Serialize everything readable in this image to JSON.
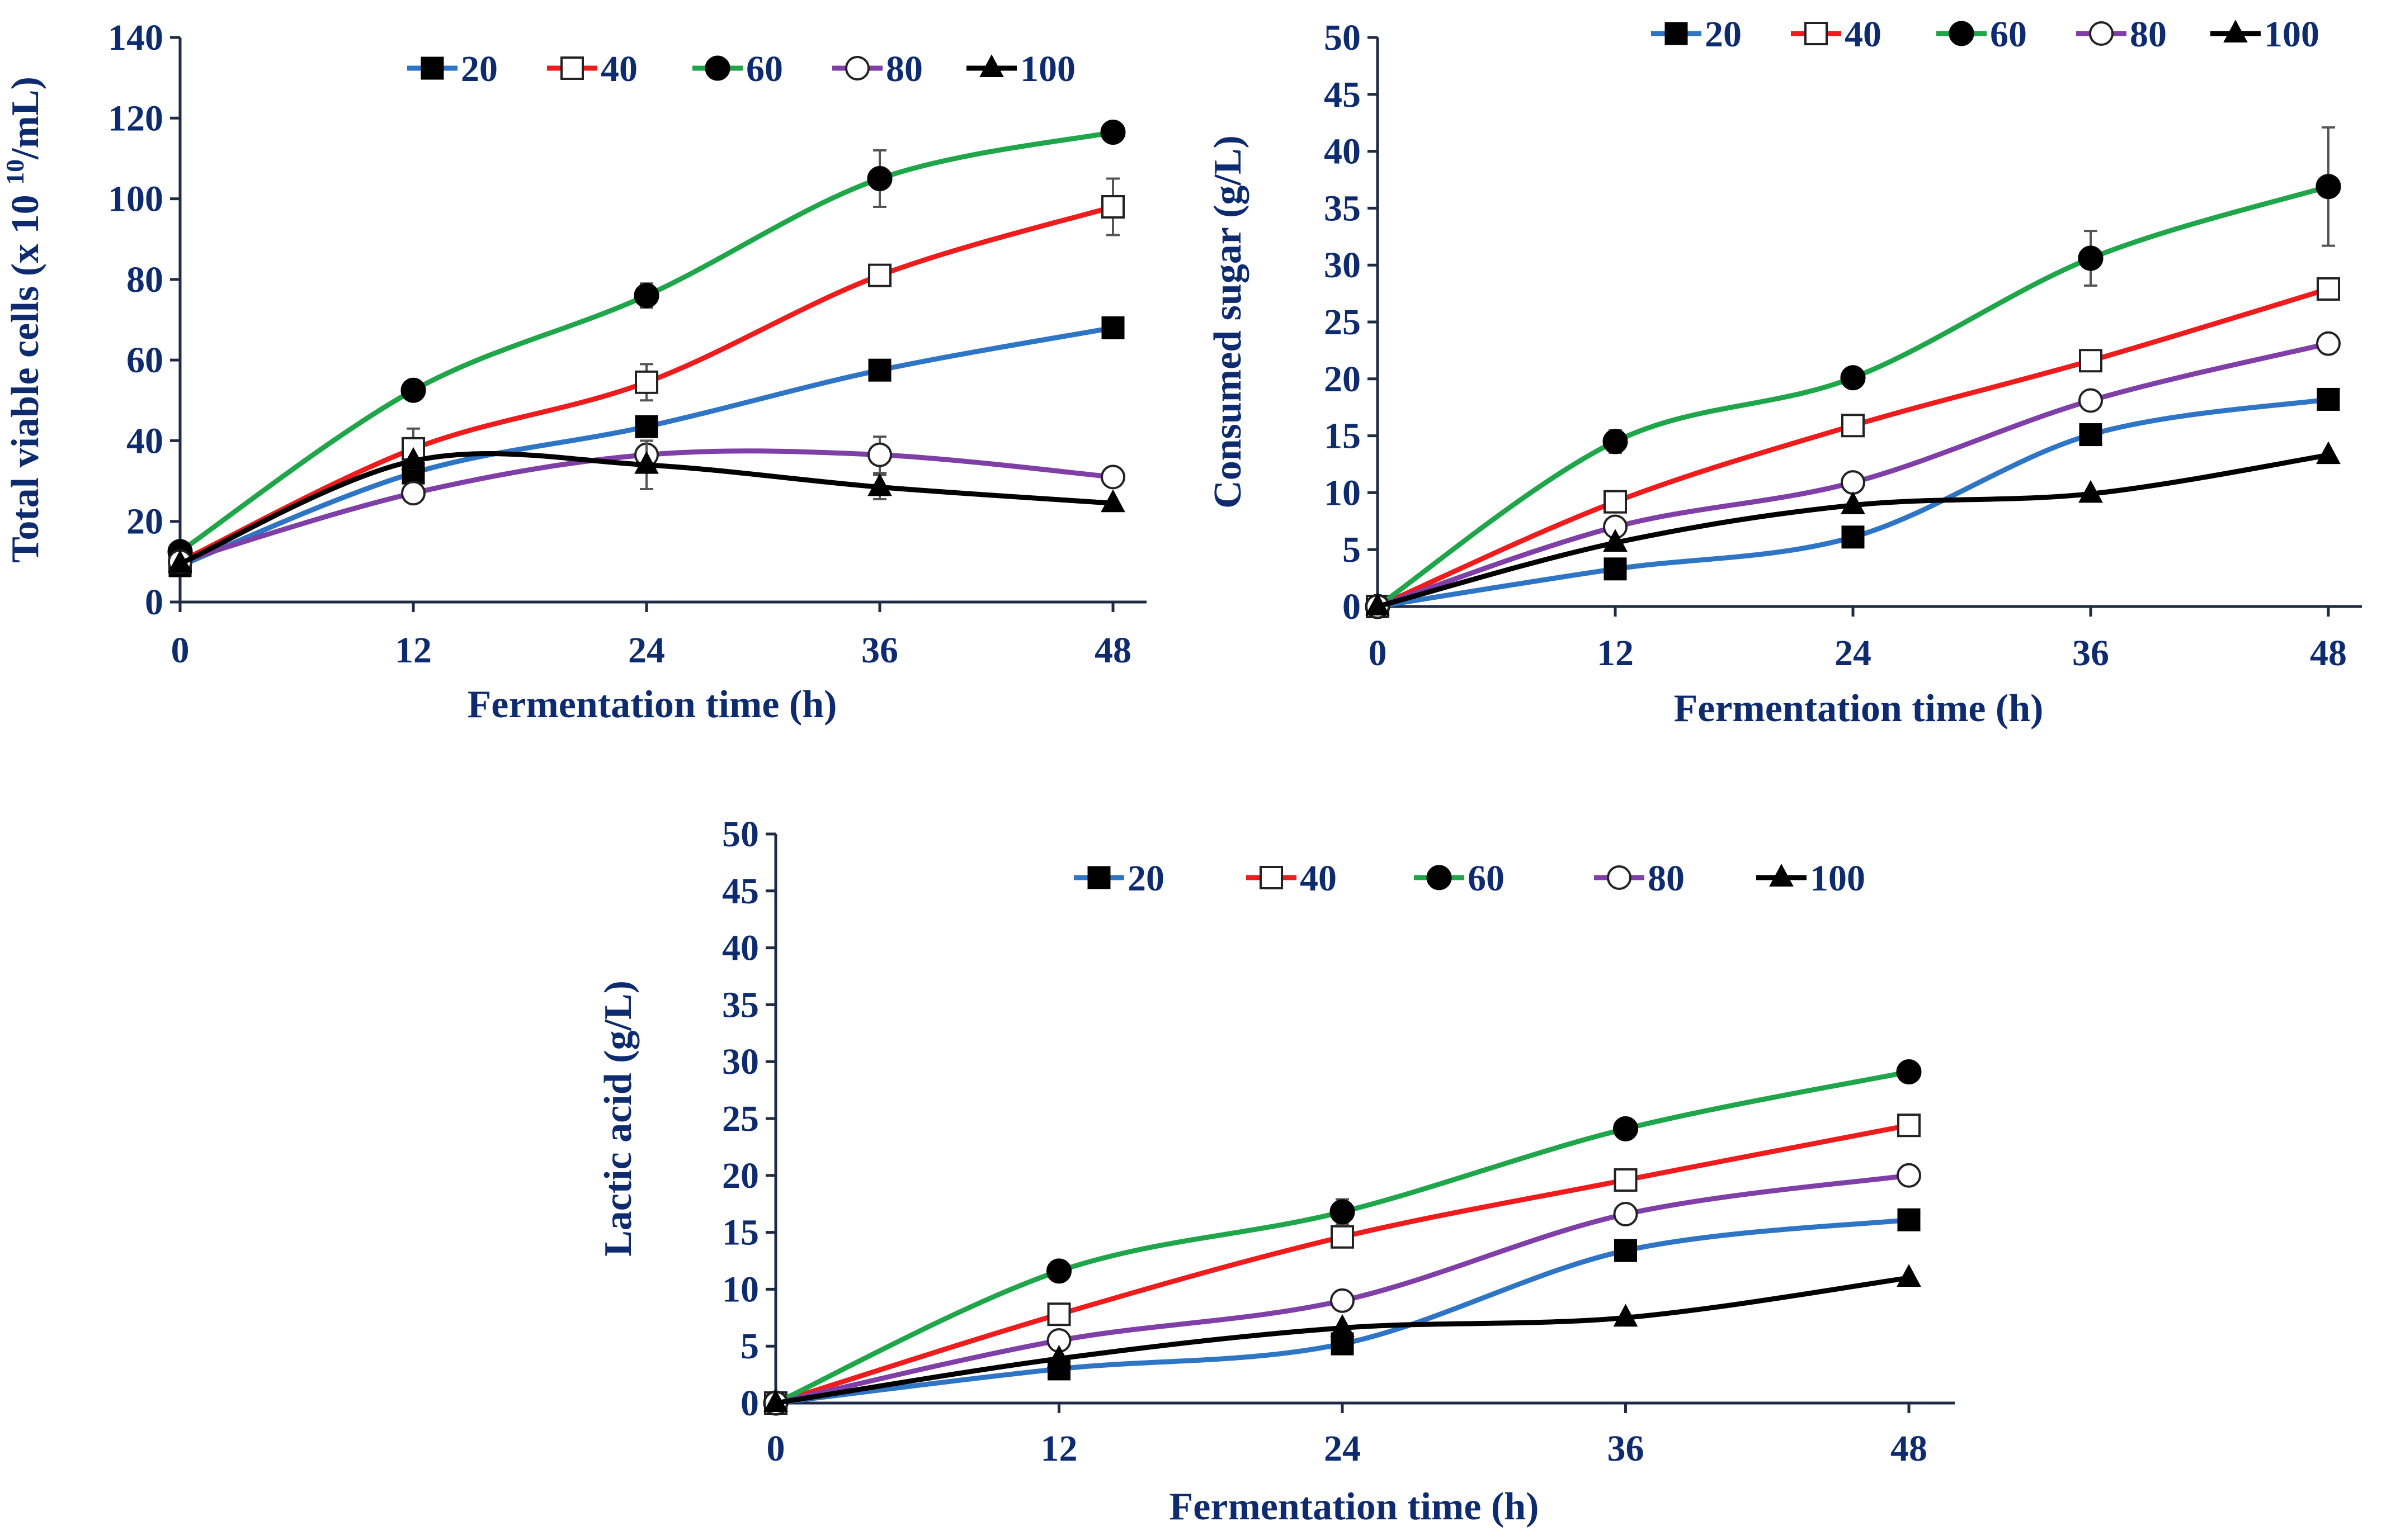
{
  "colors": {
    "s20": "#2f75c5",
    "s40": "#ee1c1c",
    "s60": "#1fa64a",
    "s80": "#7f3fa6",
    "s100": "#000000",
    "text": "#0d2b6e",
    "axis": "#1f2a44"
  },
  "chart_data": [
    {
      "type": "line",
      "xlabel": "Fermentation time (h)",
      "ylabel": "Total viable cells (x 10",
      "ylabel_sup": "10",
      "ylabel_tail": "/mL)",
      "x": [
        0,
        12,
        24,
        36,
        48
      ],
      "xticks": [
        "0",
        "12",
        "24",
        "36",
        "48"
      ],
      "ylim": [
        0,
        140
      ],
      "yticks": [
        "0",
        "20",
        "40",
        "60",
        "80",
        "100",
        "120",
        "140"
      ],
      "legend_position": "top",
      "series": [
        {
          "name": "20",
          "marker": "square-filled",
          "values": [
            9,
            32,
            43.5,
            57.5,
            68
          ],
          "errors": [
            0,
            0,
            0,
            0,
            0
          ]
        },
        {
          "name": "40",
          "marker": "square-open",
          "values": [
            10,
            38,
            54.5,
            81,
            98
          ],
          "errors": [
            0,
            5,
            4.5,
            0,
            7
          ]
        },
        {
          "name": "60",
          "marker": "circle-filled",
          "values": [
            12.5,
            52.5,
            76,
            105,
            116.5
          ],
          "errors": [
            0,
            0,
            3,
            7,
            0
          ]
        },
        {
          "name": "80",
          "marker": "circle-open",
          "values": [
            10,
            27,
            36.5,
            36.5,
            31
          ],
          "errors": [
            0,
            0,
            0,
            4.5,
            0
          ]
        },
        {
          "name": "100",
          "marker": "triangle-filled",
          "values": [
            9.5,
            35,
            34,
            28.5,
            24.5
          ],
          "errors": [
            0,
            0,
            6,
            3,
            0
          ]
        }
      ]
    },
    {
      "type": "line",
      "xlabel": "Fermentation time (h)",
      "ylabel": "Consumed sugar (g/L)",
      "x": [
        0,
        12,
        24,
        36,
        48
      ],
      "xticks": [
        "0",
        "12",
        "24",
        "36",
        "48"
      ],
      "ylim": [
        0,
        50
      ],
      "yticks": [
        "0",
        "5",
        "10",
        "15",
        "20",
        "25",
        "30",
        "35",
        "40",
        "45",
        "50"
      ],
      "legend_position": "top",
      "series": [
        {
          "name": "20",
          "marker": "square-filled",
          "values": [
            0,
            3.3,
            6.1,
            15.1,
            18.2
          ],
          "errors": [
            0,
            0,
            0,
            0,
            0
          ]
        },
        {
          "name": "40",
          "marker": "square-open",
          "values": [
            0,
            9.2,
            15.9,
            21.6,
            27.9
          ],
          "errors": [
            0,
            0.7,
            0.8,
            0.8,
            0.8
          ]
        },
        {
          "name": "60",
          "marker": "circle-filled",
          "values": [
            0,
            14.5,
            20.1,
            30.6,
            36.9
          ],
          "errors": [
            0,
            1,
            0,
            2.4,
            5.2
          ]
        },
        {
          "name": "80",
          "marker": "circle-open",
          "values": [
            0,
            7,
            10.9,
            18.1,
            23.1
          ],
          "errors": [
            0,
            0,
            0,
            0,
            0
          ]
        },
        {
          "name": "100",
          "marker": "triangle-filled",
          "values": [
            0,
            5.6,
            8.9,
            9.9,
            13.3
          ],
          "errors": [
            0,
            0,
            0,
            0,
            0
          ]
        }
      ]
    },
    {
      "type": "line",
      "xlabel": "Fermentation time (h)",
      "ylabel": "Lactic acid (g/L)",
      "x": [
        0,
        12,
        24,
        36,
        48
      ],
      "xticks": [
        "0",
        "12",
        "24",
        "36",
        "48"
      ],
      "ylim": [
        0,
        50
      ],
      "yticks": [
        "0",
        "5",
        "10",
        "15",
        "20",
        "25",
        "30",
        "35",
        "40",
        "45",
        "50"
      ],
      "legend_position": "top",
      "series": [
        {
          "name": "20",
          "marker": "square-filled",
          "values": [
            0,
            3,
            5.2,
            13.4,
            16.1
          ],
          "errors": [
            0,
            0,
            0,
            0,
            0
          ]
        },
        {
          "name": "40",
          "marker": "square-open",
          "values": [
            0,
            7.8,
            14.6,
            19.6,
            24.4
          ],
          "errors": [
            0,
            0,
            0,
            0,
            0
          ]
        },
        {
          "name": "60",
          "marker": "circle-filled",
          "values": [
            0,
            11.6,
            16.8,
            24.1,
            29.1
          ],
          "errors": [
            0,
            0,
            1.1,
            0.8,
            0.7
          ]
        },
        {
          "name": "80",
          "marker": "circle-open",
          "values": [
            0,
            5.5,
            9,
            16.6,
            20
          ],
          "errors": [
            0,
            0,
            0,
            0,
            0
          ]
        },
        {
          "name": "100",
          "marker": "triangle-filled",
          "values": [
            0,
            3.9,
            6.6,
            7.5,
            11
          ],
          "errors": [
            0,
            0,
            0,
            0,
            0
          ]
        }
      ]
    }
  ]
}
